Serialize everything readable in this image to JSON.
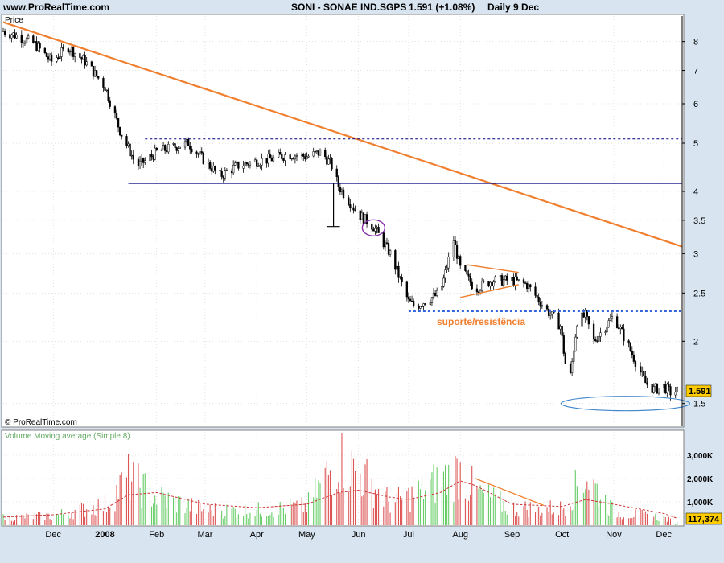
{
  "header": {
    "site": "www.ProRealTime.com",
    "symbol": "SONI - SONAE IND.SGPS",
    "last_change": "1.591 (+1.08%)",
    "period": "Daily  9 Dec"
  },
  "price_panel": {
    "label": "Price",
    "copyright": "© ProRealTime.com",
    "last_price_label": "1.591"
  },
  "volume_panel": {
    "label": "Volume Moving average (Simple 8)",
    "last_volume_label": "117,374"
  },
  "annotations": {
    "support_label": "suporte/resistência"
  },
  "colors": {
    "background": "#d8e4f0",
    "plot_bg": "#ffffff",
    "trendline": "#f08030",
    "support_line": "#3366dd",
    "horizontal_line": "#000080",
    "volume_up": "#66cc66",
    "volume_down": "#dd5555",
    "volume_ma": "#cc3333",
    "ellipse_purple": "#8833aa",
    "ellipse_blue": "#4488cc"
  },
  "chart_data": [
    {
      "type": "line",
      "name": "price",
      "scale": "log",
      "ylim": [
        1.35,
        9.0
      ],
      "y_ticks": [
        1.5,
        2,
        2.5,
        3,
        3.5,
        4,
        5,
        6,
        7,
        8
      ],
      "y_tick_labels": [
        "1.5",
        "2",
        "2.5",
        "3",
        "3.5",
        "4",
        "5",
        "6",
        "7",
        "8"
      ],
      "x_tick_labels": [
        "Dec",
        "2008",
        "Feb",
        "Mar",
        "Apr",
        "May",
        "Jun",
        "Jul",
        "Aug",
        "Sep",
        "Oct",
        "Nov",
        "Dec"
      ],
      "x": [
        "2007-11-01",
        "2007-11-10",
        "2007-11-20",
        "2007-11-30",
        "2007-12-10",
        "2007-12-20",
        "2008-01-01",
        "2008-01-10",
        "2008-01-20",
        "2008-01-25",
        "2008-02-01",
        "2008-02-10",
        "2008-02-20",
        "2008-03-01",
        "2008-03-10",
        "2008-03-20",
        "2008-04-01",
        "2008-04-10",
        "2008-04-20",
        "2008-05-01",
        "2008-05-10",
        "2008-05-16",
        "2008-05-20",
        "2008-06-01",
        "2008-06-10",
        "2008-06-20",
        "2008-07-01",
        "2008-07-05",
        "2008-07-10",
        "2008-07-20",
        "2008-07-28",
        "2008-08-01",
        "2008-08-10",
        "2008-08-20",
        "2008-09-01",
        "2008-09-10",
        "2008-09-20",
        "2008-09-30",
        "2008-10-05",
        "2008-10-10",
        "2008-10-15",
        "2008-10-20",
        "2008-10-25",
        "2008-11-01",
        "2008-11-10",
        "2008-11-20",
        "2008-11-25",
        "2008-12-01",
        "2008-12-05",
        "2008-12-09"
      ],
      "close": [
        8.4,
        8.2,
        7.9,
        7.3,
        7.8,
        7.3,
        6.5,
        5.3,
        4.5,
        4.6,
        4.8,
        4.9,
        5.0,
        4.6,
        4.3,
        4.5,
        4.6,
        4.65,
        4.75,
        4.7,
        4.8,
        4.5,
        4.1,
        3.6,
        3.4,
        3.0,
        2.4,
        2.35,
        2.4,
        2.5,
        3.2,
        2.8,
        2.55,
        2.65,
        2.65,
        2.6,
        2.35,
        2.15,
        1.6,
        2.2,
        2.25,
        2.0,
        2.1,
        2.25,
        1.95,
        1.65,
        1.6,
        1.62,
        1.58,
        1.591
      ]
    },
    {
      "type": "bar",
      "name": "volume",
      "ylim": [
        0,
        4000
      ],
      "units": "K",
      "y_ticks": [
        1000,
        2000,
        3000
      ],
      "y_tick_labels": [
        "1,000K",
        "2,000K",
        "3,000K"
      ],
      "x": [
        "2007-11-01",
        "2007-12-01",
        "2008-01-01",
        "2008-01-15",
        "2008-02-01",
        "2008-03-01",
        "2008-04-01",
        "2008-05-01",
        "2008-05-20",
        "2008-06-01",
        "2008-06-20",
        "2008-07-01",
        "2008-07-20",
        "2008-08-01",
        "2008-08-10",
        "2008-09-01",
        "2008-10-01",
        "2008-10-15",
        "2008-11-01",
        "2008-12-01",
        "2008-12-09"
      ],
      "values": [
        400,
        500,
        1100,
        2500,
        1500,
        800,
        800,
        1000,
        3600,
        2800,
        1200,
        1500,
        2400,
        2900,
        1800,
        900,
        900,
        2700,
        700,
        400,
        117.374
      ],
      "moving_average_values": [
        350,
        450,
        700,
        1300,
        1400,
        900,
        750,
        900,
        1400,
        1500,
        1200,
        1100,
        1400,
        1900,
        1700,
        900,
        800,
        1100,
        900,
        500,
        300
      ]
    }
  ]
}
